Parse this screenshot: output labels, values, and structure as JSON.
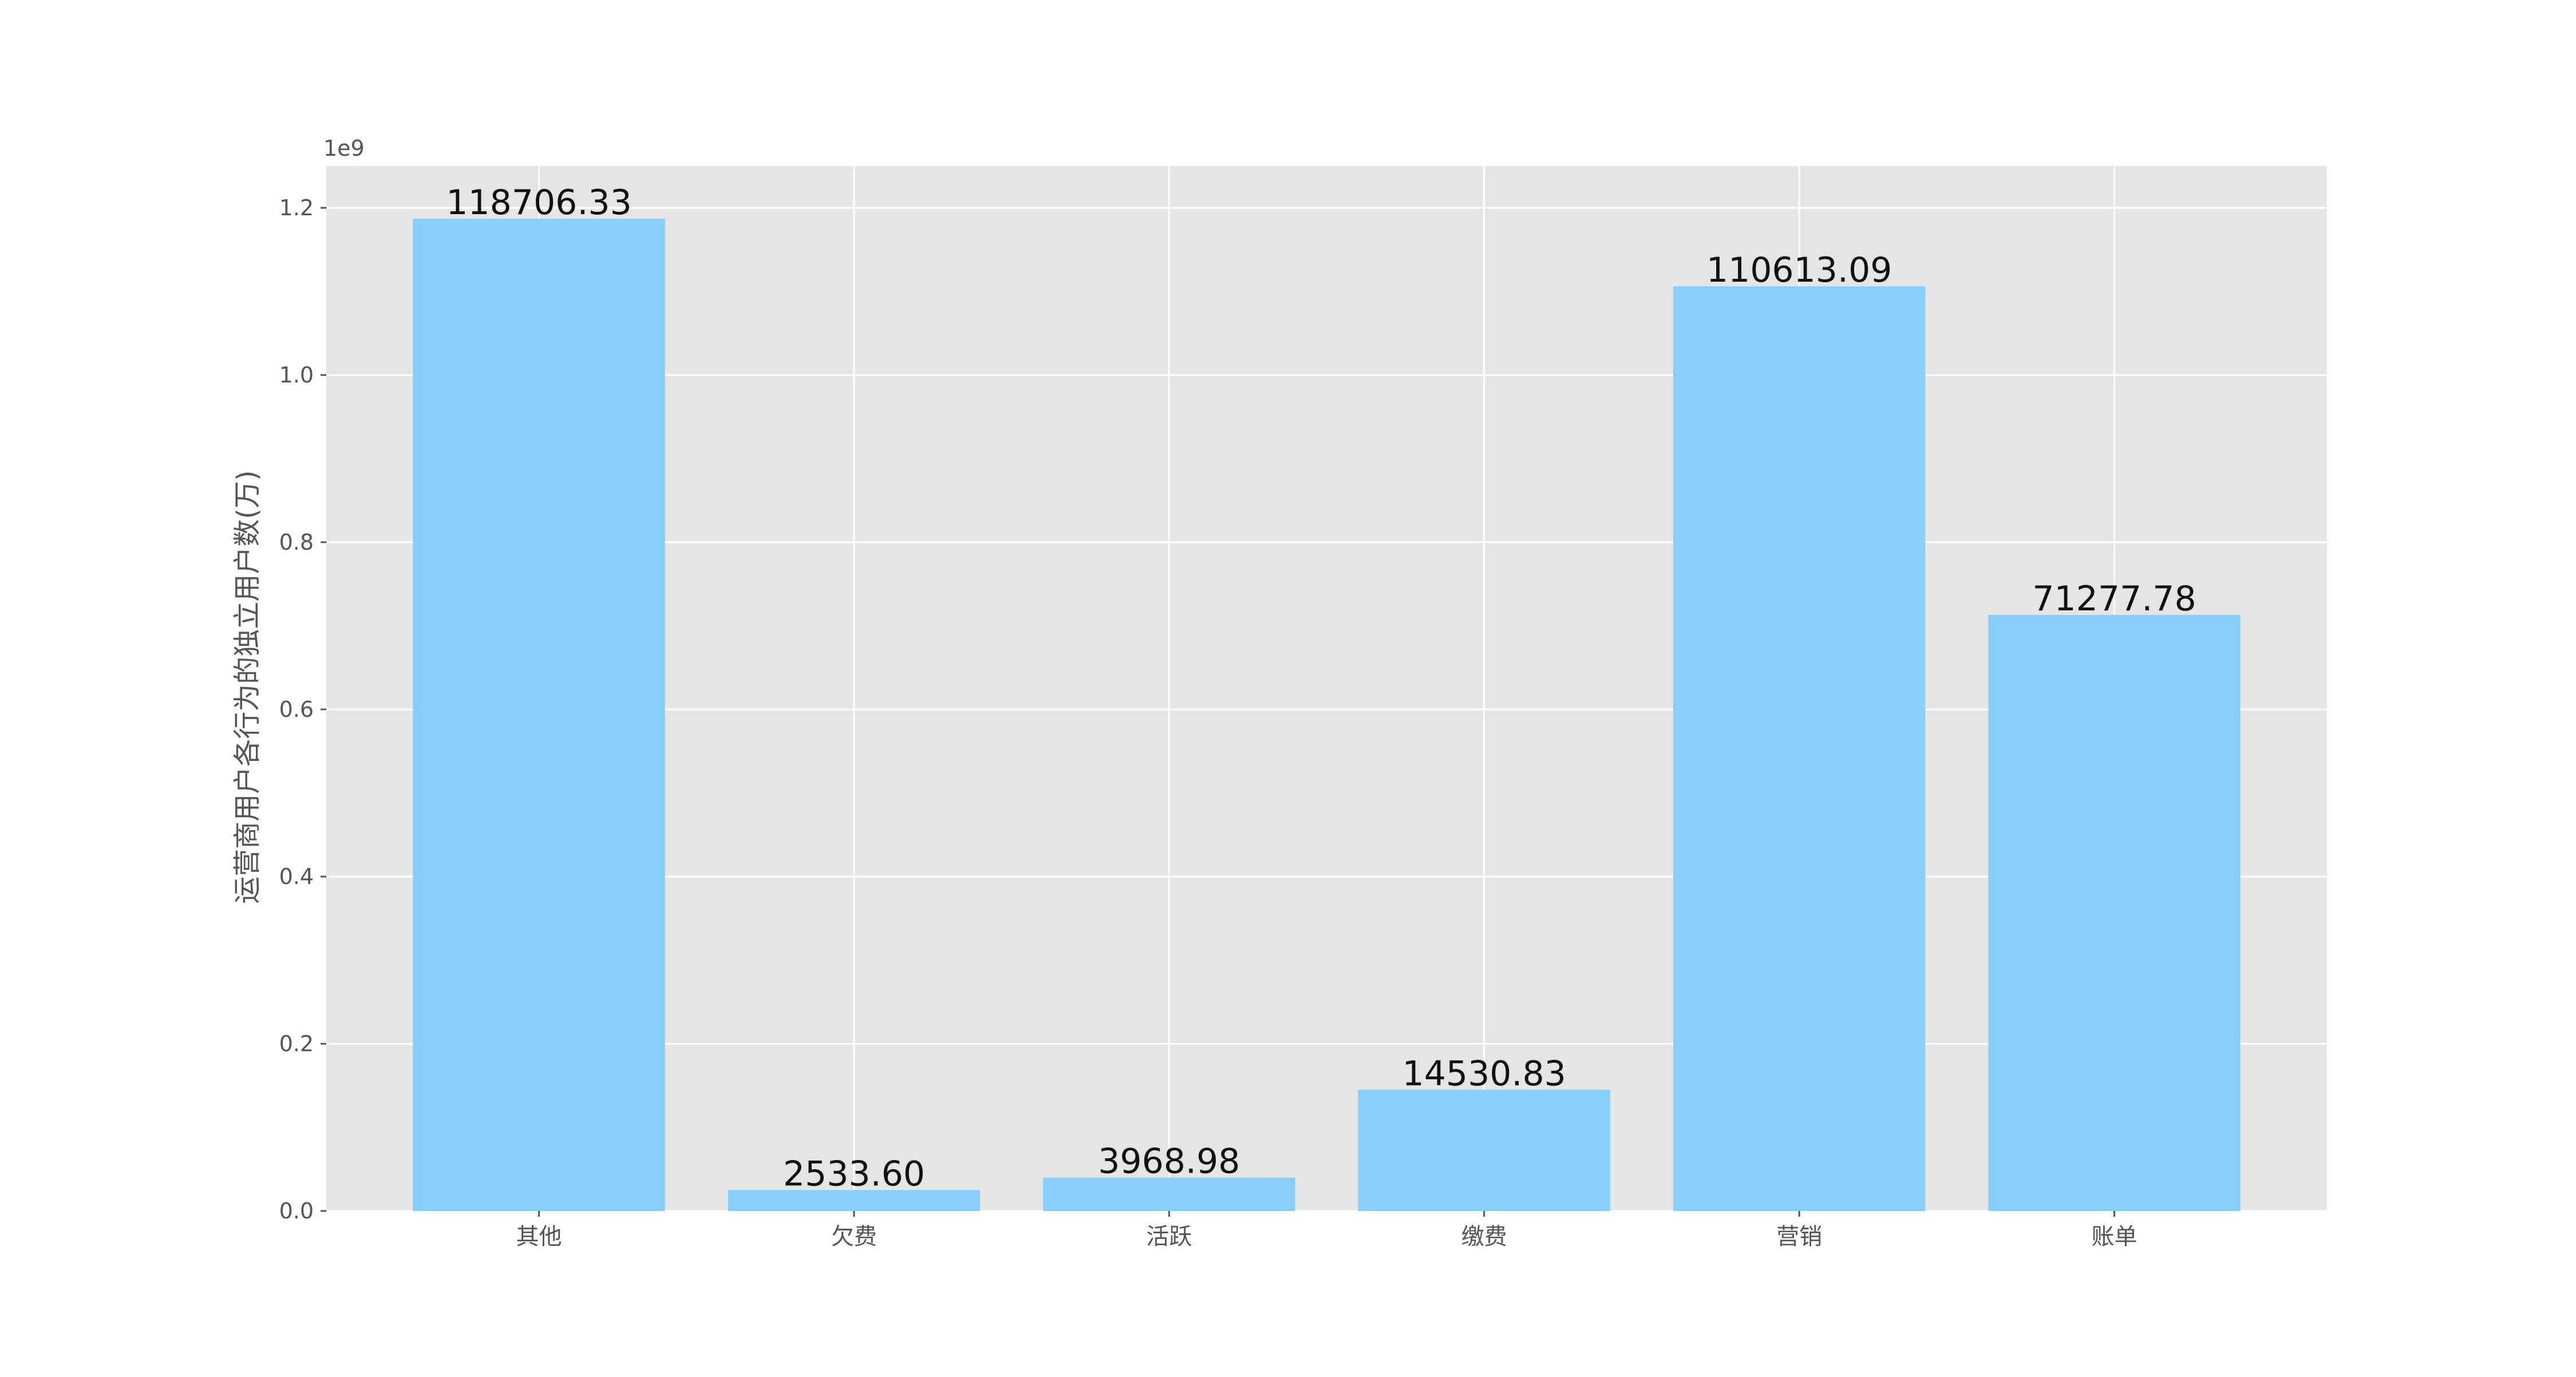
{
  "chart_data": {
    "type": "bar",
    "title": "",
    "xlabel": "",
    "ylabel": "运营商用户各行为的独立用户数(万)",
    "y_offset_text": "1e9",
    "y_scale_multiplier": 1000000000,
    "ylim": [
      0,
      1.25
    ],
    "yticks": [
      "0.0",
      "0.2",
      "0.4",
      "0.6",
      "0.8",
      "1.0",
      "1.2"
    ],
    "categories": [
      "其他",
      "欠费",
      "活跃",
      "缴费",
      "营销",
      "账单"
    ],
    "values": [
      1.187,
      0.025,
      0.04,
      0.145,
      1.106,
      0.713
    ],
    "data_labels": [
      "118706.33",
      "2533.60",
      "3968.98",
      "14530.83",
      "110613.09",
      "71277.78"
    ],
    "grid": true,
    "bar_color": "#87CEFA",
    "plot_background": "#E5E5E5",
    "grid_color": "#FFFFFF"
  }
}
